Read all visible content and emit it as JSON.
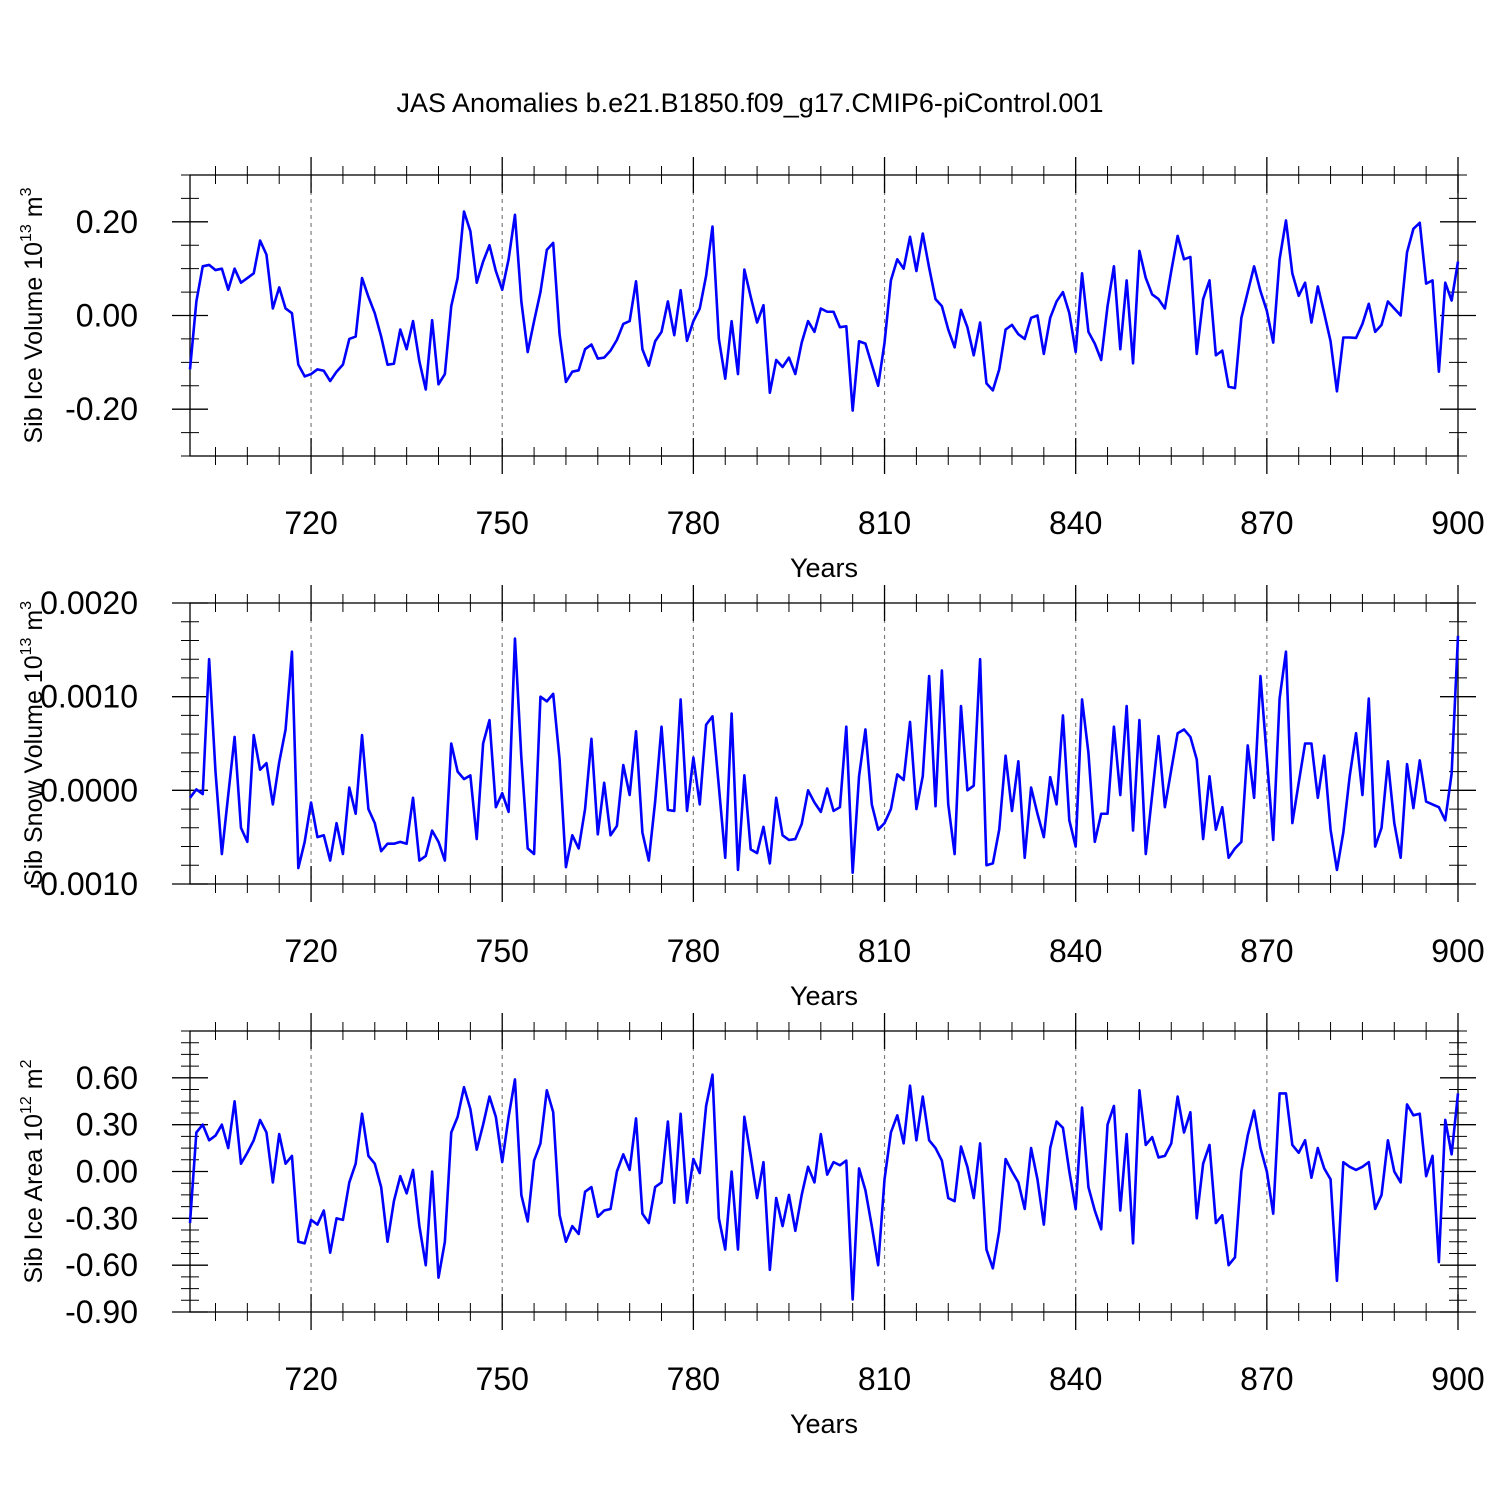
{
  "title": "JAS Anomalies b.e21.B1850.f09_g17.CMIP6-piControl.001",
  "colors": {
    "line": "#0000ff",
    "axes": "#000000",
    "grid": "#808080"
  },
  "chart_data": [
    {
      "type": "line",
      "ylabel": "Sib Ice Volume 10",
      "ylabel_sup": "13",
      "ylabel_unit": " m",
      "ylabel_unit_sup": "3",
      "xlabel": "Years",
      "xlim": [
        701,
        900
      ],
      "ylim": [
        -0.3,
        0.3
      ],
      "xticks": [
        720,
        750,
        780,
        810,
        840,
        870,
        900
      ],
      "xtick_labels": [
        "720",
        "750",
        "780",
        "810",
        "840",
        "870",
        "900"
      ],
      "yticks": [
        -0.2,
        0.0,
        0.2
      ],
      "ytick_labels": [
        "-0.20",
        "0.00",
        "0.20"
      ],
      "yminor_step": 0.05,
      "vgrid": [
        720,
        750,
        780,
        810,
        840,
        870
      ],
      "x_start": 701,
      "series": [
        {
          "name": "Sib Ice Volume",
          "values": [
            -0.115,
            0.03,
            0.105,
            0.108,
            0.097,
            0.1,
            0.055,
            0.1,
            0.07,
            0.08,
            0.09,
            0.16,
            0.13,
            0.015,
            0.06,
            0.015,
            0.005,
            -0.105,
            -0.13,
            -0.125,
            -0.115,
            -0.118,
            -0.14,
            -0.12,
            -0.105,
            -0.05,
            -0.045,
            0.08,
            0.04,
            0.005,
            -0.045,
            -0.105,
            -0.103,
            -0.03,
            -0.072,
            -0.012,
            -0.098,
            -0.158,
            -0.01,
            -0.147,
            -0.125,
            0.02,
            0.08,
            0.222,
            0.18,
            0.07,
            0.115,
            0.15,
            0.095,
            0.055,
            0.12,
            0.215,
            0.03,
            -0.078,
            -0.012,
            0.05,
            0.14,
            0.155,
            -0.04,
            -0.142,
            -0.12,
            -0.117,
            -0.072,
            -0.062,
            -0.092,
            -0.09,
            -0.075,
            -0.052,
            -0.018,
            -0.012,
            0.073,
            -0.072,
            -0.107,
            -0.055,
            -0.035,
            0.03,
            -0.042,
            0.054,
            -0.054,
            -0.012,
            0.015,
            0.085,
            0.19,
            -0.05,
            -0.135,
            -0.012,
            -0.125,
            0.098,
            0.04,
            -0.015,
            0.022,
            -0.165,
            -0.095,
            -0.11,
            -0.09,
            -0.125,
            -0.058,
            -0.012,
            -0.035,
            0.015,
            0.008,
            0.008,
            -0.025,
            -0.023,
            -0.203,
            -0.055,
            -0.06,
            -0.105,
            -0.15,
            -0.058,
            0.075,
            0.12,
            0.1,
            0.168,
            0.095,
            0.175,
            0.102,
            0.035,
            0.02,
            -0.03,
            -0.068,
            0.012,
            -0.025,
            -0.085,
            -0.015,
            -0.145,
            -0.16,
            -0.115,
            -0.03,
            -0.02,
            -0.04,
            -0.05,
            -0.005,
            0.0,
            -0.082,
            -0.005,
            0.03,
            0.05,
            0.005,
            -0.078,
            0.09,
            -0.035,
            -0.06,
            -0.095,
            0.02,
            0.105,
            -0.072,
            0.075,
            -0.102,
            0.138,
            0.08,
            0.045,
            0.035,
            0.015,
            0.095,
            0.17,
            0.12,
            0.125,
            -0.082,
            0.035,
            0.075,
            -0.085,
            -0.075,
            -0.152,
            -0.155,
            -0.005,
            0.05,
            0.105,
            0.052,
            0.01,
            -0.058,
            0.12,
            0.203,
            0.09,
            0.042,
            0.07,
            -0.015,
            0.062,
            0.005,
            -0.055,
            -0.162,
            -0.047,
            -0.047,
            -0.048,
            -0.018,
            0.025,
            -0.035,
            -0.02,
            0.03,
            0.015,
            0.0,
            0.135,
            0.185,
            0.198,
            0.068,
            0.075,
            -0.12,
            0.07,
            0.032,
            0.115
          ]
        }
      ]
    },
    {
      "type": "line",
      "ylabel": "Sib Snow Volume 10",
      "ylabel_sup": "13",
      "ylabel_unit": " m",
      "ylabel_unit_sup": "3",
      "xlabel": "Years",
      "xlim": [
        701,
        900
      ],
      "ylim": [
        -0.001,
        0.002
      ],
      "xticks": [
        720,
        750,
        780,
        810,
        840,
        870,
        900
      ],
      "xtick_labels": [
        "720",
        "750",
        "780",
        "810",
        "840",
        "870",
        "900"
      ],
      "yticks": [
        -0.001,
        0.0,
        0.001,
        0.002
      ],
      "ytick_labels": [
        "-0.0010",
        "0.0000",
        "0.0010",
        "0.0020"
      ],
      "yminor_step": 0.0002,
      "vgrid": [
        720,
        750,
        780,
        810,
        840,
        870
      ],
      "x_start": 701,
      "series": [
        {
          "name": "Sib Snow Volume",
          "values": [
            -8e-05,
            1e-05,
            -4e-05,
            0.0014,
            0.0002,
            -0.00068,
            -5e-05,
            0.00057,
            -0.0004,
            -0.00055,
            0.00059,
            0.00022,
            0.00029,
            -0.00015,
            0.0003,
            0.00065,
            0.00148,
            -0.00083,
            -0.00055,
            -0.00013,
            -0.0005,
            -0.00048,
            -0.00075,
            -0.00035,
            -0.00068,
            3e-05,
            -0.00025,
            0.00059,
            -0.0002,
            -0.00035,
            -0.00065,
            -0.00057,
            -0.00057,
            -0.00055,
            -0.00057,
            -8e-05,
            -0.00075,
            -0.0007,
            -0.00043,
            -0.00055,
            -0.00075,
            0.0005,
            0.0002,
            0.00012,
            0.00016,
            -0.00052,
            0.0005,
            0.00075,
            -0.00018,
            -3e-05,
            -0.00023,
            0.00162,
            0.00035,
            -0.00062,
            -0.00068,
            0.001,
            0.00095,
            0.00103,
            0.00033,
            -0.00082,
            -0.00048,
            -0.00062,
            -0.0002,
            0.00055,
            -0.00047,
            8e-05,
            -0.00048,
            -0.00038,
            0.00027,
            -5e-05,
            0.00063,
            -0.00045,
            -0.00075,
            -0.00012,
            0.00068,
            -0.00021,
            -0.00022,
            0.00097,
            -0.00022,
            0.00035,
            -0.00015,
            0.0007,
            0.00079,
            4e-05,
            -0.00072,
            0.00082,
            -0.00085,
            0.00016,
            -0.00063,
            -0.00067,
            -0.00039,
            -0.00078,
            -8e-05,
            -0.00048,
            -0.00053,
            -0.00052,
            -0.00036,
            0.0,
            -0.00013,
            -0.00023,
            2e-05,
            -0.00022,
            -0.00018,
            0.00068,
            -0.00088,
            0.00015,
            0.00065,
            -0.00015,
            -0.00042,
            -0.00035,
            -0.0002,
            0.00017,
            0.00011,
            0.00073,
            -0.0002,
            0.00015,
            0.00122,
            -0.00017,
            0.00128,
            -0.00015,
            -0.00068,
            0.0009,
            0.0,
            5e-05,
            0.0014,
            -0.0008,
            -0.00078,
            -0.00042,
            0.00037,
            -0.00022,
            0.00031,
            -0.00072,
            3e-05,
            -0.00025,
            -0.0005,
            0.00014,
            -0.00015,
            0.0008,
            -0.00032,
            -0.0006,
            0.00097,
            0.0004,
            -0.00055,
            -0.00025,
            -0.00025,
            0.00068,
            -5e-05,
            0.0009,
            -0.00043,
            0.00075,
            -0.00068,
            -5e-05,
            0.00058,
            -0.00018,
            0.00022,
            0.00061,
            0.00065,
            0.00057,
            0.00033,
            -0.00052,
            0.00015,
            -0.00042,
            -0.00018,
            -0.00072,
            -0.00062,
            -0.00055,
            0.00048,
            -8e-05,
            0.00122,
            0.00035,
            -0.00053,
            0.00098,
            0.00148,
            -0.00035,
            8e-05,
            0.0005,
            0.0005,
            -8e-05,
            0.00037,
            -0.00042,
            -0.00085,
            -0.00045,
            0.00015,
            0.00061,
            -5e-05,
            0.00098,
            -0.0006,
            -0.0004,
            0.00031,
            -0.00035,
            -0.00072,
            0.00028,
            -0.00019,
            0.00032,
            -0.00012,
            -0.00015,
            -0.00018,
            -0.00032,
            0.00018,
            0.00165
          ]
        }
      ]
    },
    {
      "type": "line",
      "ylabel": "Sib Ice Area 10",
      "ylabel_sup": "12",
      "ylabel_unit": " m",
      "ylabel_unit_sup": "2",
      "xlabel": "Years",
      "xlim": [
        701,
        900
      ],
      "ylim": [
        -0.9,
        0.9
      ],
      "xticks": [
        720,
        750,
        780,
        810,
        840,
        870,
        900
      ],
      "xtick_labels": [
        "720",
        "750",
        "780",
        "810",
        "840",
        "870",
        "900"
      ],
      "yticks": [
        -0.9,
        -0.6,
        -0.3,
        0.0,
        0.3,
        0.6
      ],
      "ytick_labels": [
        "-0.90",
        "-0.60",
        "-0.30",
        "0.00",
        "0.30",
        "0.60"
      ],
      "yminor_step": 0.075,
      "vgrid": [
        720,
        750,
        780,
        810,
        840,
        870
      ],
      "x_start": 701,
      "series": [
        {
          "name": "Sib Ice Area",
          "values": [
            -0.33,
            0.25,
            0.3,
            0.2,
            0.23,
            0.3,
            0.15,
            0.45,
            0.05,
            0.12,
            0.2,
            0.33,
            0.25,
            -0.07,
            0.24,
            0.05,
            0.1,
            -0.45,
            -0.46,
            -0.31,
            -0.34,
            -0.25,
            -0.52,
            -0.3,
            -0.31,
            -0.07,
            0.05,
            0.37,
            0.1,
            0.05,
            -0.1,
            -0.45,
            -0.19,
            -0.03,
            -0.14,
            0.01,
            -0.35,
            -0.6,
            0.0,
            -0.68,
            -0.45,
            0.25,
            0.35,
            0.54,
            0.4,
            0.14,
            0.3,
            0.48,
            0.35,
            0.06,
            0.35,
            0.59,
            -0.15,
            -0.32,
            0.07,
            0.18,
            0.52,
            0.38,
            -0.28,
            -0.45,
            -0.35,
            -0.4,
            -0.13,
            -0.1,
            -0.29,
            -0.25,
            -0.24,
            0.0,
            0.11,
            0.01,
            0.34,
            -0.27,
            -0.33,
            -0.1,
            -0.07,
            0.32,
            -0.2,
            0.37,
            -0.2,
            0.08,
            -0.01,
            0.42,
            0.62,
            -0.3,
            -0.5,
            0.0,
            -0.5,
            0.35,
            0.1,
            -0.17,
            0.06,
            -0.63,
            -0.17,
            -0.35,
            -0.15,
            -0.38,
            -0.15,
            0.03,
            -0.07,
            0.24,
            -0.02,
            0.06,
            0.04,
            0.07,
            -0.82,
            0.02,
            -0.12,
            -0.35,
            -0.6,
            -0.05,
            0.25,
            0.36,
            0.18,
            0.55,
            0.2,
            0.48,
            0.2,
            0.15,
            0.07,
            -0.17,
            -0.19,
            0.16,
            0.03,
            -0.17,
            0.18,
            -0.5,
            -0.62,
            -0.38,
            0.08,
            0.0,
            -0.07,
            -0.24,
            0.15,
            -0.05,
            -0.34,
            0.15,
            0.32,
            0.28,
            0.0,
            -0.24,
            0.41,
            -0.1,
            -0.25,
            -0.37,
            0.3,
            0.42,
            -0.25,
            0.24,
            -0.46,
            0.52,
            0.17,
            0.22,
            0.09,
            0.1,
            0.18,
            0.48,
            0.25,
            0.38,
            -0.3,
            0.05,
            0.17,
            -0.33,
            -0.28,
            -0.6,
            -0.55,
            0.0,
            0.23,
            0.39,
            0.15,
            0.0,
            -0.27,
            0.5,
            0.5,
            0.17,
            0.12,
            0.2,
            -0.04,
            0.15,
            0.02,
            -0.05,
            -0.7,
            0.06,
            0.03,
            0.01,
            0.03,
            0.06,
            -0.24,
            -0.15,
            0.2,
            0.0,
            -0.07,
            0.43,
            0.36,
            0.37,
            -0.03,
            0.1,
            -0.58,
            0.33,
            0.11,
            0.5
          ]
        }
      ]
    }
  ]
}
